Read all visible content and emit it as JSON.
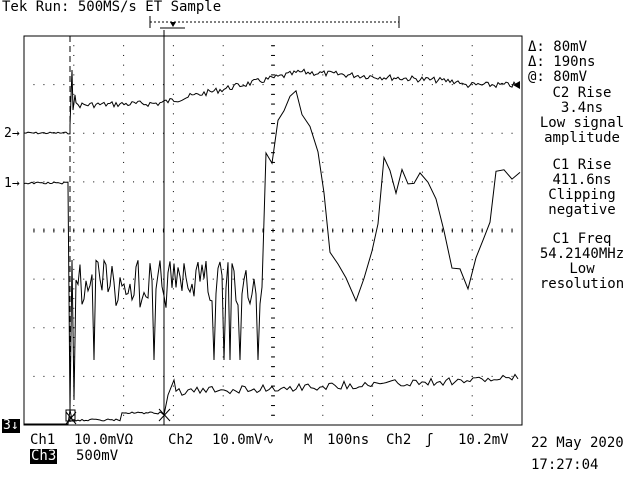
{
  "header": {
    "title": "Tek Run: 500MS/s ET Sample"
  },
  "readout": {
    "delta_v": "Δ: 80mV",
    "delta_t": "Δ: 190ns",
    "at_v": "@: 80mV"
  },
  "annotations": [
    {
      "line1": "C2 Rise",
      "line2": "3.4ns",
      "line3": "Low signal",
      "line4": "amplitude"
    },
    {
      "line1": "C1 Rise",
      "line2": "411.6ns",
      "line3": "Clipping",
      "line4": "negative"
    },
    {
      "line1": "C1 Freq",
      "line2": "54.2140MHz",
      "line3": "Low",
      "line4": "resolution"
    }
  ],
  "channel_markers": {
    "ch2": "2→",
    "ch1": "1→",
    "ch3": "3↓"
  },
  "status_bar": {
    "ch1_label": "Ch1",
    "ch1_scale": "10.0mVΩ",
    "ch2_label": "Ch2",
    "ch2_scale": "10.0mV∿",
    "timebase_label": "M",
    "timebase_value": "100ns",
    "trigger_source": "Ch2",
    "trigger_slope": "ʃ",
    "trigger_level": "10.2mV",
    "ch3_label": "Ch3",
    "ch3_scale": "500mV"
  },
  "datetime": {
    "date": "22 May 2020",
    "time": "17:27:04"
  },
  "colors": {
    "trace": "#000000",
    "background": "#ffffff"
  }
}
